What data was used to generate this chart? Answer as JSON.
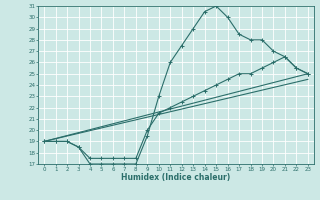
{
  "title": "",
  "xlabel": "Humidex (Indice chaleur)",
  "ylabel": "",
  "xlim": [
    -0.5,
    23.5
  ],
  "ylim": [
    17,
    31
  ],
  "xticks": [
    0,
    1,
    2,
    3,
    4,
    5,
    6,
    7,
    8,
    9,
    10,
    11,
    12,
    13,
    14,
    15,
    16,
    17,
    18,
    19,
    20,
    21,
    22,
    23
  ],
  "yticks": [
    17,
    18,
    19,
    20,
    21,
    22,
    23,
    24,
    25,
    26,
    27,
    28,
    29,
    30,
    31
  ],
  "bg_color": "#cce8e5",
  "line_color": "#2b6e6a",
  "grid_color": "#ffffff",
  "line1_x": [
    0,
    1,
    2,
    3,
    4,
    5,
    6,
    7,
    8,
    9,
    10,
    11,
    12,
    13,
    14,
    15,
    16,
    17,
    18,
    19,
    20,
    21,
    22,
    23
  ],
  "line1_y": [
    19,
    19,
    19,
    18.5,
    17,
    17,
    17,
    17,
    17,
    19.5,
    23,
    26,
    27.5,
    29,
    30.5,
    31,
    30,
    28.5,
    28,
    28,
    27,
    26.5,
    25.5,
    25
  ],
  "line2_x": [
    0,
    1,
    2,
    3,
    4,
    5,
    6,
    7,
    8,
    9,
    10,
    11,
    12,
    13,
    14,
    15,
    16,
    17,
    18,
    19,
    20,
    21,
    22,
    23
  ],
  "line2_y": [
    19,
    19,
    19,
    18.5,
    17.5,
    17.5,
    17.5,
    17.5,
    17.5,
    20,
    21.5,
    22,
    22.5,
    23,
    23.5,
    24,
    24.5,
    25,
    25,
    25.5,
    26,
    26.5,
    25.5,
    25
  ],
  "line3_x": [
    0,
    23
  ],
  "line3_y": [
    19,
    25
  ],
  "line4_x": [
    0,
    23
  ],
  "line4_y": [
    19,
    24.5
  ],
  "tick_fontsize": 4.0,
  "xlabel_fontsize": 5.5
}
